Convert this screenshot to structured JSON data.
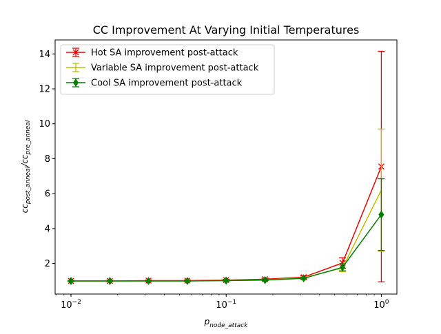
{
  "chart_data": {
    "type": "line",
    "title": "CC Improvement At Varying Initial Temperatures",
    "xlabel": {
      "base": "p",
      "sub": "node_attack"
    },
    "ylabel": {
      "p1": "cc",
      "s1": "post_anneal",
      "sep": "/",
      "p2": "cc",
      "s2": "pre_anneal"
    },
    "xscale": "log",
    "xlim": [
      0.0079,
      1.26
    ],
    "ylim": [
      0.25,
      14.8
    ],
    "x_ticks": [
      {
        "value": 0.01,
        "base": "10",
        "exp": "−2"
      },
      {
        "value": 0.1,
        "base": "10",
        "exp": "−1"
      },
      {
        "value": 1,
        "base": "10",
        "exp": "0"
      }
    ],
    "y_ticks": [
      {
        "value": 2,
        "label": "2"
      },
      {
        "value": 4,
        "label": "4"
      },
      {
        "value": 6,
        "label": "6"
      },
      {
        "value": 8,
        "label": "8"
      },
      {
        "value": 10,
        "label": "10"
      },
      {
        "value": 12,
        "label": "12"
      },
      {
        "value": 14,
        "label": "14"
      }
    ],
    "legend_position": "top-left",
    "grid": false,
    "x": [
      0.01,
      0.0178,
      0.0316,
      0.0562,
      0.1,
      0.178,
      0.316,
      0.562,
      1.0
    ],
    "series": [
      {
        "name": "Hot SA improvement post-attack",
        "color": "#ee0000",
        "marker": "x",
        "values": [
          1.0,
          1.0,
          1.02,
          1.02,
          1.05,
          1.1,
          1.22,
          2.03,
          7.55
        ],
        "errors": [
          0.03,
          0.03,
          0.03,
          0.04,
          0.05,
          0.06,
          0.08,
          0.3,
          6.6
        ]
      },
      {
        "name": "Variable SA improvement post-attack",
        "color": "#bfbf00",
        "marker": "errorbar",
        "values": [
          1.0,
          1.0,
          1.0,
          1.0,
          1.03,
          1.06,
          1.18,
          1.75,
          6.2
        ],
        "errors": [
          0.02,
          0.02,
          0.02,
          0.03,
          0.03,
          0.04,
          0.06,
          0.22,
          3.5
        ]
      },
      {
        "name": "Cool SA improvement post-attack",
        "color": "#007f00",
        "marker": "diamond",
        "values": [
          1.0,
          1.0,
          1.0,
          1.0,
          1.02,
          1.05,
          1.15,
          1.78,
          4.8
        ],
        "errors": [
          0.02,
          0.02,
          0.02,
          0.02,
          0.03,
          0.04,
          0.05,
          0.2,
          2.05
        ]
      }
    ]
  }
}
